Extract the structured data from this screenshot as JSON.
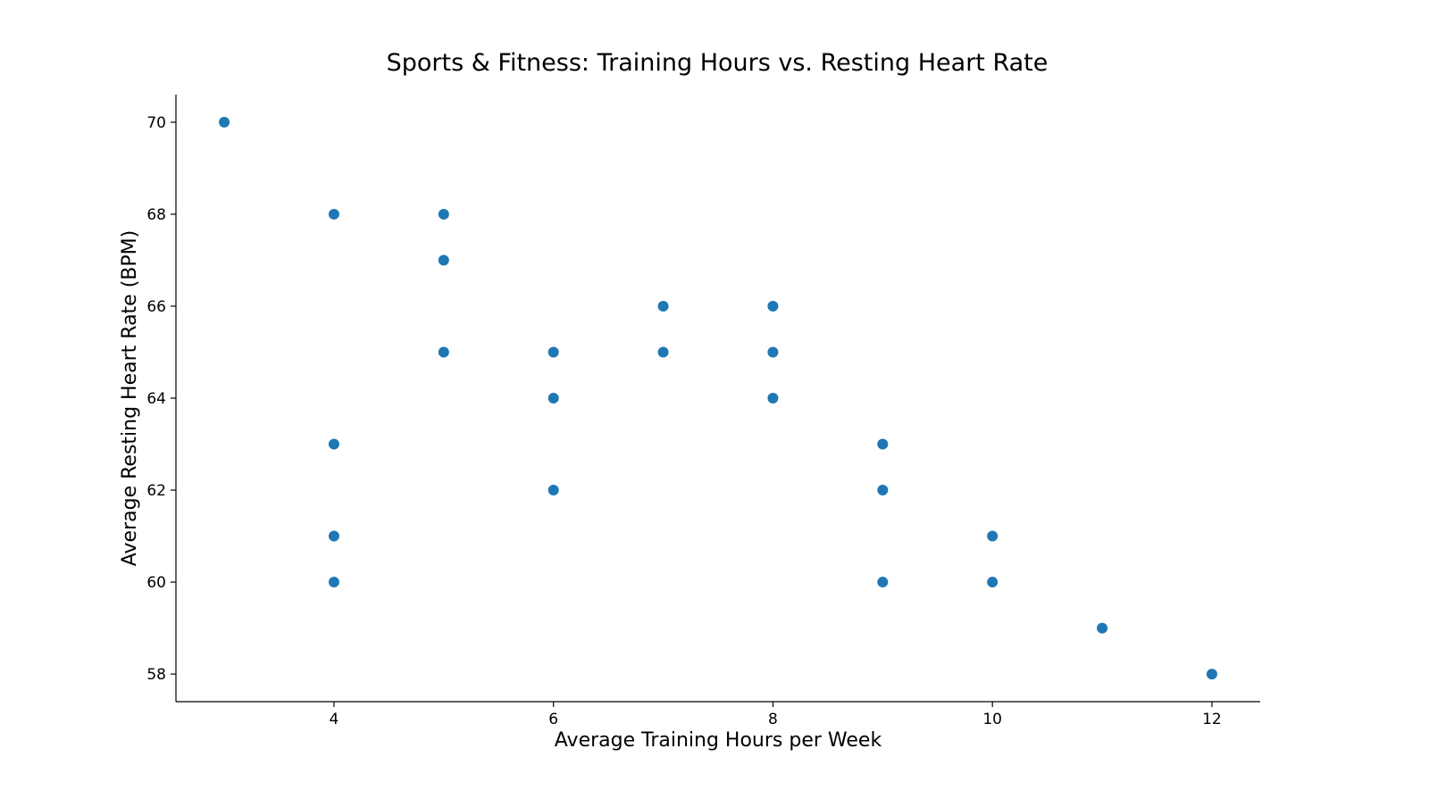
{
  "chart_data": {
    "type": "scatter",
    "title": "Sports & Fitness: Training Hours vs. Resting Heart Rate",
    "xlabel": "Average Training Hours per Week",
    "ylabel": "Average Resting Heart Rate (BPM)",
    "xlim": [
      2.56,
      12.44
    ],
    "ylim": [
      57.4,
      70.6
    ],
    "xticks": [
      4,
      6,
      8,
      10,
      12
    ],
    "yticks": [
      58,
      60,
      62,
      64,
      66,
      68,
      70
    ],
    "grid": false,
    "marker_color": "#1f77b4",
    "points": [
      {
        "x": 3,
        "y": 70
      },
      {
        "x": 4,
        "y": 68
      },
      {
        "x": 4,
        "y": 63
      },
      {
        "x": 4,
        "y": 61
      },
      {
        "x": 4,
        "y": 60
      },
      {
        "x": 5,
        "y": 68
      },
      {
        "x": 5,
        "y": 67
      },
      {
        "x": 5,
        "y": 65
      },
      {
        "x": 6,
        "y": 65
      },
      {
        "x": 6,
        "y": 64
      },
      {
        "x": 6,
        "y": 62
      },
      {
        "x": 7,
        "y": 66
      },
      {
        "x": 7,
        "y": 65
      },
      {
        "x": 8,
        "y": 66
      },
      {
        "x": 8,
        "y": 65
      },
      {
        "x": 8,
        "y": 64
      },
      {
        "x": 9,
        "y": 63
      },
      {
        "x": 9,
        "y": 62
      },
      {
        "x": 9,
        "y": 60
      },
      {
        "x": 10,
        "y": 61
      },
      {
        "x": 10,
        "y": 60
      },
      {
        "x": 11,
        "y": 59
      },
      {
        "x": 12,
        "y": 58
      }
    ]
  }
}
